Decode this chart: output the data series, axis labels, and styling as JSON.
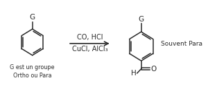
{
  "bg_color": "#ffffff",
  "line_color": "#2a2a2a",
  "reagents_above": "CO, HCl",
  "reagents_below": "CuCl, AlCl₃",
  "label_left": "G est un groupe\nOrtho ou Para",
  "label_right": "Souvent Para",
  "label_G": "G",
  "label_G2": "G",
  "label_H": "H",
  "label_O": "O",
  "font_size_reagents": 7.0,
  "font_size_labels": 5.8,
  "font_size_G": 7.5,
  "font_size_HO": 7.5,
  "font_size_souvent": 6.5
}
